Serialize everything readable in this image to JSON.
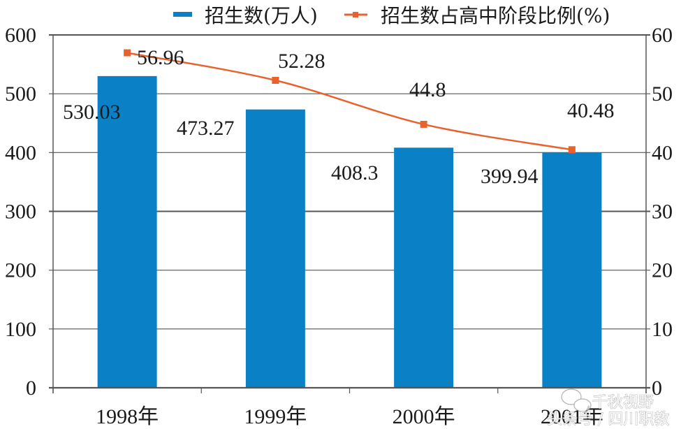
{
  "chart_data": {
    "type": "bar+line",
    "title": "",
    "categories": [
      "1998年",
      "1999年",
      "2000年",
      "2001年"
    ],
    "series": [
      {
        "name": "招生数(万人)",
        "type": "bar",
        "axis": "left",
        "color": "#0a80c6",
        "values": [
          530.03,
          473.27,
          408.3,
          399.94
        ],
        "labels": [
          "530.03",
          "473.27",
          "408.3",
          "399.94"
        ]
      },
      {
        "name": "招生数占高中阶段比例(%)",
        "type": "line",
        "axis": "right",
        "color": "#e8622e",
        "smooth": true,
        "marker": "square",
        "values": [
          56.96,
          52.28,
          44.8,
          40.48
        ],
        "labels": [
          "56.96",
          "52.28",
          "44.8",
          "40.48"
        ]
      }
    ],
    "left_axis": {
      "min": 0,
      "max": 600,
      "step": 100,
      "ticks": [
        "0",
        "100",
        "200",
        "300",
        "400",
        "500",
        "600"
      ]
    },
    "right_axis": {
      "min": 0,
      "max": 60,
      "step": 10,
      "ticks": [
        "0",
        "10",
        "20",
        "30",
        "40",
        "50",
        "60"
      ]
    },
    "xlabel": "",
    "ylabel": "",
    "grid": true,
    "legend_position": "top"
  },
  "legend": {
    "items": [
      {
        "label": "招生数(万人)",
        "color": "#0a80c6",
        "kind": "bar"
      },
      {
        "label": "招生数占高中阶段比例(%)",
        "color": "#e8622e",
        "kind": "line"
      }
    ]
  },
  "watermark": {
    "line1": "千秋视野",
    "line2": "头条号 / 四川职教",
    "icon": "wechat-icon"
  }
}
